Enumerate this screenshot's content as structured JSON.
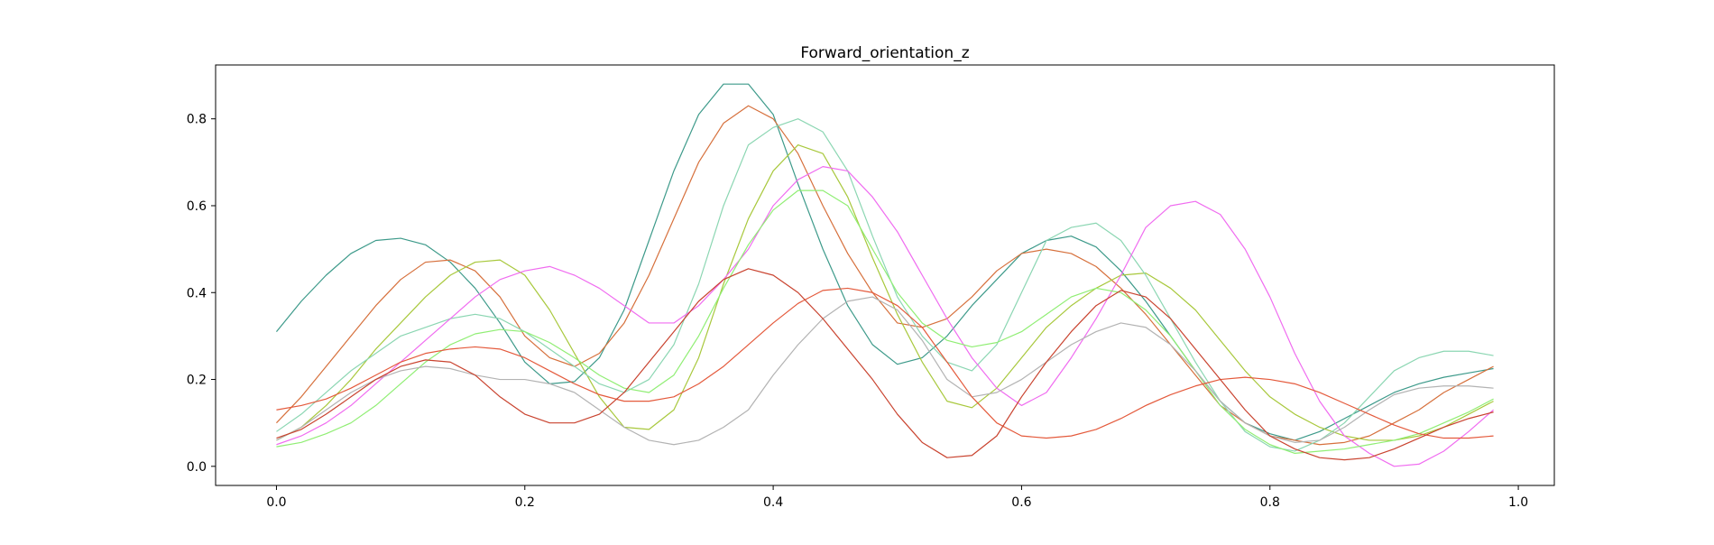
{
  "chart_data": {
    "type": "line",
    "title": "Forward_orientation_z",
    "xlabel": "",
    "ylabel": "",
    "xlim": [
      -0.049,
      1.029
    ],
    "ylim": [
      -0.044,
      0.924
    ],
    "xticks": [
      0.0,
      0.2,
      0.4,
      0.6,
      0.8,
      1.0
    ],
    "xtick_labels": [
      "0.0",
      "0.2",
      "0.4",
      "0.6",
      "0.8",
      "1.0"
    ],
    "yticks": [
      0.0,
      0.2,
      0.4,
      0.6,
      0.8
    ],
    "ytick_labels": [
      "0.0",
      "0.2",
      "0.4",
      "0.6",
      "0.8"
    ],
    "grid": false,
    "legend": "none",
    "x": [
      0.0,
      0.02,
      0.04,
      0.06,
      0.08,
      0.1,
      0.12,
      0.14,
      0.16,
      0.18,
      0.2,
      0.22,
      0.24,
      0.26,
      0.28,
      0.3,
      0.32,
      0.34,
      0.36,
      0.38,
      0.4,
      0.42,
      0.44,
      0.46,
      0.48,
      0.5,
      0.52,
      0.54,
      0.56,
      0.58,
      0.6,
      0.62,
      0.64,
      0.66,
      0.68,
      0.7,
      0.72,
      0.74,
      0.76,
      0.78,
      0.8,
      0.82,
      0.84,
      0.86,
      0.88,
      0.9,
      0.92,
      0.94,
      0.96,
      0.98
    ],
    "series": [
      {
        "color": "#3d9a8a",
        "values": [
          0.31,
          0.38,
          0.44,
          0.49,
          0.52,
          0.525,
          0.51,
          0.47,
          0.41,
          0.33,
          0.24,
          0.19,
          0.195,
          0.25,
          0.36,
          0.52,
          0.68,
          0.81,
          0.88,
          0.88,
          0.81,
          0.65,
          0.5,
          0.37,
          0.28,
          0.235,
          0.25,
          0.3,
          0.37,
          0.43,
          0.49,
          0.52,
          0.53,
          0.505,
          0.45,
          0.38,
          0.3,
          0.22,
          0.15,
          0.1,
          0.075,
          0.06,
          0.08,
          0.11,
          0.14,
          0.17,
          0.19,
          0.205,
          0.215,
          0.225
        ]
      },
      {
        "color": "#d6703c",
        "values": [
          0.1,
          0.16,
          0.23,
          0.3,
          0.37,
          0.43,
          0.47,
          0.475,
          0.45,
          0.39,
          0.3,
          0.25,
          0.23,
          0.26,
          0.33,
          0.44,
          0.57,
          0.7,
          0.79,
          0.83,
          0.8,
          0.72,
          0.6,
          0.49,
          0.4,
          0.33,
          0.32,
          0.34,
          0.39,
          0.45,
          0.49,
          0.5,
          0.49,
          0.46,
          0.41,
          0.35,
          0.28,
          0.21,
          0.14,
          0.1,
          0.07,
          0.06,
          0.05,
          0.055,
          0.07,
          0.1,
          0.13,
          0.17,
          0.2,
          0.23
        ]
      },
      {
        "color": "#a8c83c",
        "values": [
          0.06,
          0.09,
          0.14,
          0.2,
          0.27,
          0.33,
          0.39,
          0.44,
          0.47,
          0.475,
          0.44,
          0.36,
          0.26,
          0.16,
          0.09,
          0.085,
          0.13,
          0.25,
          0.42,
          0.57,
          0.68,
          0.74,
          0.72,
          0.62,
          0.48,
          0.35,
          0.24,
          0.15,
          0.135,
          0.18,
          0.25,
          0.32,
          0.37,
          0.41,
          0.44,
          0.445,
          0.41,
          0.36,
          0.29,
          0.22,
          0.16,
          0.12,
          0.09,
          0.07,
          0.06,
          0.06,
          0.07,
          0.09,
          0.12,
          0.15
        ]
      },
      {
        "color": "#8bd6b2",
        "values": [
          0.08,
          0.12,
          0.17,
          0.22,
          0.26,
          0.3,
          0.32,
          0.34,
          0.35,
          0.34,
          0.31,
          0.27,
          0.23,
          0.19,
          0.17,
          0.2,
          0.28,
          0.42,
          0.6,
          0.74,
          0.78,
          0.8,
          0.77,
          0.68,
          0.53,
          0.39,
          0.3,
          0.24,
          0.22,
          0.28,
          0.4,
          0.52,
          0.55,
          0.56,
          0.52,
          0.44,
          0.34,
          0.24,
          0.15,
          0.08,
          0.045,
          0.035,
          0.06,
          0.1,
          0.16,
          0.22,
          0.25,
          0.265,
          0.265,
          0.255
        ]
      },
      {
        "color": "#f06cf0",
        "values": [
          0.05,
          0.07,
          0.1,
          0.14,
          0.19,
          0.24,
          0.29,
          0.34,
          0.39,
          0.43,
          0.45,
          0.46,
          0.44,
          0.41,
          0.37,
          0.33,
          0.33,
          0.37,
          0.43,
          0.5,
          0.6,
          0.66,
          0.69,
          0.68,
          0.62,
          0.54,
          0.44,
          0.34,
          0.25,
          0.18,
          0.14,
          0.17,
          0.25,
          0.34,
          0.44,
          0.55,
          0.6,
          0.61,
          0.58,
          0.5,
          0.39,
          0.26,
          0.15,
          0.07,
          0.03,
          0.0,
          0.005,
          0.035,
          0.08,
          0.13
        ]
      },
      {
        "color": "#90ee74",
        "values": [
          0.045,
          0.055,
          0.075,
          0.1,
          0.14,
          0.19,
          0.24,
          0.28,
          0.305,
          0.315,
          0.31,
          0.285,
          0.25,
          0.21,
          0.18,
          0.17,
          0.21,
          0.3,
          0.41,
          0.51,
          0.59,
          0.635,
          0.635,
          0.6,
          0.5,
          0.4,
          0.33,
          0.29,
          0.275,
          0.285,
          0.31,
          0.35,
          0.39,
          0.41,
          0.4,
          0.36,
          0.3,
          0.22,
          0.14,
          0.085,
          0.05,
          0.03,
          0.035,
          0.04,
          0.05,
          0.06,
          0.075,
          0.1,
          0.125,
          0.155
        ]
      },
      {
        "color": "#b3b3b3",
        "values": [
          0.06,
          0.09,
          0.13,
          0.17,
          0.2,
          0.22,
          0.23,
          0.225,
          0.21,
          0.2,
          0.2,
          0.19,
          0.17,
          0.13,
          0.09,
          0.06,
          0.05,
          0.06,
          0.09,
          0.13,
          0.21,
          0.28,
          0.34,
          0.38,
          0.39,
          0.36,
          0.29,
          0.2,
          0.16,
          0.17,
          0.2,
          0.24,
          0.28,
          0.31,
          0.33,
          0.32,
          0.28,
          0.22,
          0.15,
          0.1,
          0.07,
          0.055,
          0.06,
          0.09,
          0.13,
          0.165,
          0.18,
          0.185,
          0.185,
          0.18
        ]
      },
      {
        "color": "#e45a3c",
        "values": [
          0.13,
          0.14,
          0.155,
          0.18,
          0.21,
          0.24,
          0.26,
          0.27,
          0.275,
          0.27,
          0.25,
          0.22,
          0.19,
          0.165,
          0.15,
          0.15,
          0.16,
          0.19,
          0.23,
          0.28,
          0.33,
          0.375,
          0.405,
          0.41,
          0.4,
          0.37,
          0.32,
          0.24,
          0.16,
          0.1,
          0.07,
          0.065,
          0.07,
          0.085,
          0.11,
          0.14,
          0.165,
          0.185,
          0.2,
          0.205,
          0.2,
          0.19,
          0.17,
          0.145,
          0.12,
          0.095,
          0.075,
          0.065,
          0.065,
          0.07
        ]
      },
      {
        "color": "#c9432f",
        "values": [
          0.065,
          0.085,
          0.12,
          0.16,
          0.2,
          0.23,
          0.245,
          0.24,
          0.21,
          0.16,
          0.12,
          0.1,
          0.1,
          0.12,
          0.17,
          0.24,
          0.31,
          0.38,
          0.43,
          0.455,
          0.44,
          0.4,
          0.34,
          0.27,
          0.2,
          0.12,
          0.055,
          0.02,
          0.025,
          0.07,
          0.16,
          0.24,
          0.31,
          0.37,
          0.405,
          0.39,
          0.34,
          0.27,
          0.2,
          0.13,
          0.07,
          0.04,
          0.02,
          0.015,
          0.02,
          0.04,
          0.065,
          0.09,
          0.11,
          0.125
        ]
      }
    ]
  }
}
